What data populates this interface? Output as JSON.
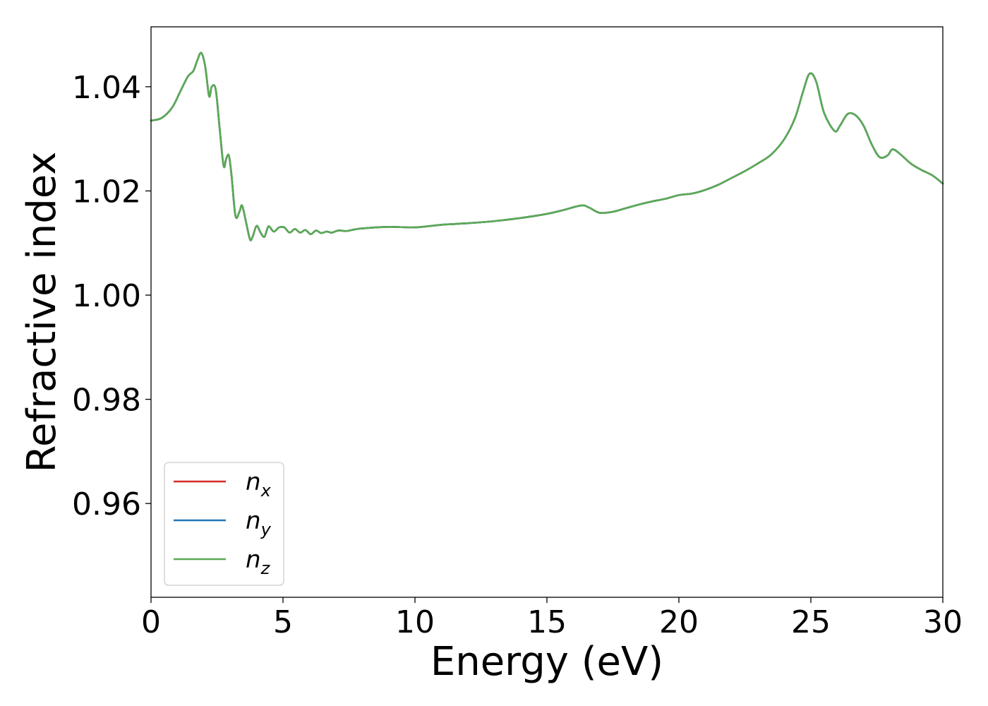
{
  "chart_data": {
    "type": "line",
    "title": "",
    "xlabel": "Energy (eV)",
    "ylabel": "Refractive index",
    "xlim": [
      0,
      30
    ],
    "ylim": [
      0.942,
      1.0515
    ],
    "xticks": [
      0,
      5,
      10,
      15,
      20,
      25,
      30
    ],
    "xtick_labels": [
      "0",
      "5",
      "10",
      "15",
      "20",
      "25",
      "30"
    ],
    "yticks": [
      0.96,
      0.98,
      1.0,
      1.02,
      1.04
    ],
    "ytick_labels": [
      "0.96",
      "0.98",
      "1.00",
      "1.02",
      "1.04"
    ],
    "grid": false,
    "legend": {
      "position": "lower-left"
    },
    "x": [
      0,
      0.4,
      0.8,
      1.1,
      1.4,
      1.6,
      1.75,
      1.9,
      2.05,
      2.2,
      2.3,
      2.45,
      2.6,
      2.75,
      2.85,
      2.95,
      3.05,
      3.2,
      3.35,
      3.45,
      3.6,
      3.75,
      3.85,
      4.0,
      4.15,
      4.3,
      4.45,
      4.65,
      4.85,
      5.05,
      5.25,
      5.45,
      5.65,
      5.85,
      6.05,
      6.25,
      6.45,
      6.65,
      6.85,
      7.1,
      7.4,
      7.7,
      8.0,
      9.0,
      10.0,
      11.0,
      12.0,
      13.0,
      14.0,
      15.0,
      15.6,
      16.3,
      16.6,
      17.0,
      17.5,
      18.0,
      18.5,
      19.0,
      19.5,
      20.0,
      20.5,
      21.0,
      21.5,
      22.0,
      22.5,
      23.0,
      23.5,
      24.0,
      24.4,
      24.7,
      24.95,
      25.2,
      25.5,
      25.9,
      26.1,
      26.4,
      26.7,
      27.0,
      27.3,
      27.6,
      27.9,
      28.1,
      28.4,
      28.8,
      29.2,
      29.6,
      30.0
    ],
    "series": [
      {
        "name": "n_x",
        "color": "#d62728",
        "y": [
          1.0335,
          1.034,
          1.036,
          1.039,
          1.042,
          1.043,
          1.045,
          1.0465,
          1.044,
          1.0382,
          1.04,
          1.0395,
          1.032,
          1.0248,
          1.0262,
          1.0268,
          1.023,
          1.0152,
          1.016,
          1.0172,
          1.014,
          1.0107,
          1.0112,
          1.0133,
          1.012,
          1.0112,
          1.0132,
          1.0122,
          1.013,
          1.013,
          1.012,
          1.0127,
          1.012,
          1.0125,
          1.0117,
          1.0124,
          1.0119,
          1.0122,
          1.012,
          1.0124,
          1.0123,
          1.0126,
          1.0128,
          1.0131,
          1.013,
          1.0135,
          1.0138,
          1.0142,
          1.0148,
          1.0156,
          1.0163,
          1.0172,
          1.0168,
          1.0158,
          1.016,
          1.0167,
          1.0174,
          1.018,
          1.0185,
          1.0192,
          1.0195,
          1.0202,
          1.0212,
          1.0225,
          1.0238,
          1.0253,
          1.027,
          1.03,
          1.034,
          1.039,
          1.0425,
          1.041,
          1.035,
          1.0315,
          1.0325,
          1.0348,
          1.0345,
          1.0325,
          1.029,
          1.0265,
          1.0268,
          1.028,
          1.027,
          1.0252,
          1.024,
          1.023,
          1.0214
        ]
      },
      {
        "name": "n_y",
        "color": "#1f77b4",
        "y": [
          1.0335,
          1.034,
          1.036,
          1.039,
          1.042,
          1.043,
          1.045,
          1.0465,
          1.044,
          1.0382,
          1.04,
          1.0395,
          1.032,
          1.0248,
          1.0262,
          1.0268,
          1.023,
          1.0152,
          1.016,
          1.0172,
          1.014,
          1.0107,
          1.0112,
          1.0133,
          1.012,
          1.0112,
          1.0132,
          1.0122,
          1.013,
          1.013,
          1.012,
          1.0127,
          1.012,
          1.0125,
          1.0117,
          1.0124,
          1.0119,
          1.0122,
          1.012,
          1.0124,
          1.0123,
          1.0126,
          1.0128,
          1.0131,
          1.013,
          1.0135,
          1.0138,
          1.0142,
          1.0148,
          1.0156,
          1.0163,
          1.0172,
          1.0168,
          1.0158,
          1.016,
          1.0167,
          1.0174,
          1.018,
          1.0185,
          1.0192,
          1.0195,
          1.0202,
          1.0212,
          1.0225,
          1.0238,
          1.0253,
          1.027,
          1.03,
          1.034,
          1.039,
          1.0425,
          1.041,
          1.035,
          1.0315,
          1.0325,
          1.0348,
          1.0345,
          1.0325,
          1.029,
          1.0265,
          1.0268,
          1.028,
          1.027,
          1.0252,
          1.024,
          1.023,
          1.0214
        ]
      },
      {
        "name": "n_z",
        "color": "#5aaa55",
        "y": [
          1.0335,
          1.034,
          1.036,
          1.039,
          1.042,
          1.043,
          1.045,
          1.0465,
          1.044,
          1.0382,
          1.04,
          1.0395,
          1.032,
          1.0248,
          1.0262,
          1.0268,
          1.023,
          1.0152,
          1.016,
          1.0172,
          1.014,
          1.0107,
          1.0112,
          1.0133,
          1.012,
          1.0112,
          1.0132,
          1.0122,
          1.013,
          1.013,
          1.012,
          1.0127,
          1.012,
          1.0125,
          1.0117,
          1.0124,
          1.0119,
          1.0122,
          1.012,
          1.0124,
          1.0123,
          1.0126,
          1.0128,
          1.0131,
          1.013,
          1.0135,
          1.0138,
          1.0142,
          1.0148,
          1.0156,
          1.0163,
          1.0172,
          1.0168,
          1.0158,
          1.016,
          1.0167,
          1.0174,
          1.018,
          1.0185,
          1.0192,
          1.0195,
          1.0202,
          1.0212,
          1.0225,
          1.0238,
          1.0253,
          1.027,
          1.03,
          1.034,
          1.039,
          1.0425,
          1.041,
          1.035,
          1.0315,
          1.0325,
          1.0348,
          1.0345,
          1.0325,
          1.029,
          1.0265,
          1.0268,
          1.028,
          1.027,
          1.0252,
          1.024,
          1.023,
          1.0214
        ]
      }
    ],
    "legend_entries": [
      {
        "base": "n",
        "sub": "x",
        "color": "#d62728"
      },
      {
        "base": "n",
        "sub": "y",
        "color": "#1f77b4"
      },
      {
        "base": "n",
        "sub": "z",
        "color": "#5aaa55"
      }
    ]
  }
}
